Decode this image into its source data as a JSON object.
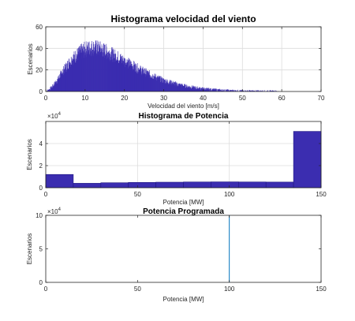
{
  "colors": {
    "bar_fill": "#3b2db0",
    "bar_edge": "#1f1780",
    "line": "#0072bd",
    "grid": "#dcdcdc",
    "axes": "#262626",
    "background": "#ffffff"
  },
  "chart_data": [
    {
      "type": "bar",
      "title": "Histograma velocidad del viento",
      "xlabel": "Velocidad del viento [m/s]",
      "ylabel": "Escenarios",
      "xlim": [
        0,
        70
      ],
      "ylim": [
        0,
        60
      ],
      "xticks": [
        "0",
        "10",
        "20",
        "30",
        "40",
        "50",
        "60",
        "70"
      ],
      "yticks": [
        "0",
        "20",
        "40",
        "60"
      ],
      "grid": true,
      "envelope": {
        "x": [
          0,
          1,
          2,
          3,
          4,
          5,
          6,
          7,
          8,
          9,
          10,
          11,
          12,
          13,
          14,
          15,
          16,
          17,
          18,
          19,
          20,
          22,
          24,
          26,
          28,
          30,
          32,
          34,
          36,
          38,
          40,
          42,
          44,
          46,
          48,
          50,
          52,
          54,
          56,
          58,
          60,
          62
        ],
        "y": [
          0,
          2,
          6,
          11,
          17,
          22,
          27,
          31,
          34,
          37,
          39,
          40,
          40.5,
          40,
          39,
          37.5,
          36,
          34,
          32,
          30,
          28,
          24,
          20,
          16.5,
          13,
          10,
          8,
          6,
          4.5,
          3.3,
          2.4,
          1.7,
          1.2,
          0.8,
          0.5,
          0.35,
          0.22,
          0.12,
          0.07,
          0.03,
          0.01,
          0
        ]
      }
    },
    {
      "type": "bar",
      "title": "Histograma de Potencia",
      "xlabel": "Potencia [MW]",
      "ylabel": "Escenarios",
      "xlim": [
        0,
        150
      ],
      "ylim": [
        0,
        60000
      ],
      "exponent": "10",
      "exponent_power": "4",
      "xticks": [
        "0",
        "50",
        "100",
        "150"
      ],
      "yticks": [
        "0",
        "2",
        "4"
      ],
      "grid": true,
      "bin_edges": [
        0,
        15,
        30,
        45,
        60,
        75,
        90,
        105,
        120,
        135,
        150
      ],
      "values": [
        12000,
        4000,
        4500,
        4800,
        5000,
        5200,
        5300,
        5200,
        5100,
        51000
      ]
    },
    {
      "type": "line",
      "title": "Potencia Programada",
      "xlabel": "Potencia [MW]",
      "ylabel": "Escenarios",
      "xlim": [
        0,
        150
      ],
      "ylim": [
        0,
        100000
      ],
      "exponent": "10",
      "exponent_power": "4",
      "xticks": [
        "0",
        "50",
        "100",
        "150"
      ],
      "yticks": [
        "0",
        "5",
        "10"
      ],
      "grid": false,
      "spike": {
        "x": 100,
        "y": 100000
      }
    }
  ]
}
